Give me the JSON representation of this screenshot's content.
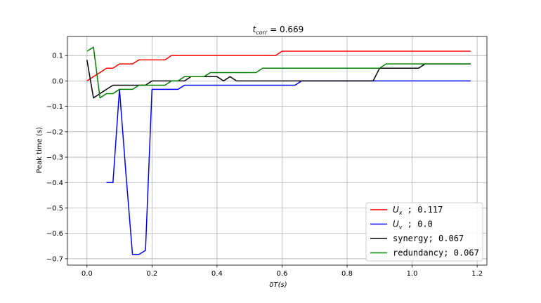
{
  "chart_data": {
    "type": "line",
    "title_main": "t",
    "title_sub": "corr",
    "title_rest": " = 0.669",
    "xlabel_main": "δT",
    "xlabel_rest": "(s)",
    "ylabel": "Peak time (s)",
    "xlim": [
      -0.06,
      1.23
    ],
    "ylim": [
      -0.725,
      0.175
    ],
    "xticks": [
      0.0,
      0.2,
      0.4,
      0.6,
      0.8,
      1.0,
      1.2
    ],
    "xtick_labels": [
      "0.0",
      "0.2",
      "0.4",
      "0.6",
      "0.8",
      "1.0",
      "1.2"
    ],
    "yticks": [
      0.1,
      0.0,
      -0.1,
      -0.2,
      -0.3,
      -0.4,
      -0.5,
      -0.6,
      -0.7
    ],
    "ytick_labels": [
      "0.1",
      "0.0",
      "−0.1",
      "−0.2",
      "−0.3",
      "−0.4",
      "−0.5",
      "−0.6",
      "−0.7"
    ],
    "grid": true,
    "legend_position": "bottom-right",
    "series": [
      {
        "legend_main": "U",
        "legend_sub": "x",
        "legend_rest": " ; 0.117",
        "color": "#ff0000",
        "points": [
          [
            0.0,
            0.0
          ],
          [
            0.02,
            0.017
          ],
          [
            0.04,
            0.033
          ],
          [
            0.06,
            0.05
          ],
          [
            0.08,
            0.05
          ],
          [
            0.1,
            0.067
          ],
          [
            0.12,
            0.067
          ],
          [
            0.14,
            0.067
          ],
          [
            0.16,
            0.083
          ],
          [
            0.18,
            0.083
          ],
          [
            0.2,
            0.083
          ],
          [
            0.22,
            0.083
          ],
          [
            0.24,
            0.083
          ],
          [
            0.26,
            0.1
          ],
          [
            0.28,
            0.1
          ],
          [
            0.3,
            0.1
          ],
          [
            0.4,
            0.1
          ],
          [
            0.5,
            0.1
          ],
          [
            0.58,
            0.1
          ],
          [
            0.6,
            0.117
          ],
          [
            0.7,
            0.117
          ],
          [
            0.8,
            0.117
          ],
          [
            0.9,
            0.117
          ],
          [
            1.0,
            0.117
          ],
          [
            1.1,
            0.117
          ],
          [
            1.18,
            0.117
          ]
        ]
      },
      {
        "legend_main": "U",
        "legend_sub": "v",
        "legend_rest": " ; 0.0",
        "color": "#0000ff",
        "points": [
          [
            0.06,
            -0.4
          ],
          [
            0.08,
            -0.4
          ],
          [
            0.1,
            -0.033
          ],
          [
            0.12,
            -0.367
          ],
          [
            0.14,
            -0.683
          ],
          [
            0.16,
            -0.683
          ],
          [
            0.18,
            -0.667
          ],
          [
            0.2,
            -0.033
          ],
          [
            0.22,
            -0.033
          ],
          [
            0.24,
            -0.033
          ],
          [
            0.26,
            -0.033
          ],
          [
            0.28,
            -0.033
          ],
          [
            0.3,
            -0.017
          ],
          [
            0.4,
            -0.017
          ],
          [
            0.5,
            -0.017
          ],
          [
            0.64,
            -0.017
          ],
          [
            0.66,
            0.0
          ],
          [
            0.8,
            0.0
          ],
          [
            1.0,
            0.0
          ],
          [
            1.18,
            0.0
          ]
        ]
      },
      {
        "legend_main": "synergy",
        "legend_sub": "",
        "legend_rest": "; 0.067",
        "color": "#000000",
        "points": [
          [
            0.0,
            0.083
          ],
          [
            0.02,
            -0.067
          ],
          [
            0.04,
            -0.05
          ],
          [
            0.06,
            -0.033
          ],
          [
            0.08,
            -0.017
          ],
          [
            0.1,
            -0.017
          ],
          [
            0.12,
            -0.017
          ],
          [
            0.14,
            -0.017
          ],
          [
            0.16,
            -0.017
          ],
          [
            0.18,
            -0.017
          ],
          [
            0.2,
            0.0
          ],
          [
            0.22,
            0.0
          ],
          [
            0.28,
            0.0
          ],
          [
            0.3,
            0.0
          ],
          [
            0.32,
            0.017
          ],
          [
            0.36,
            0.017
          ],
          [
            0.38,
            0.017
          ],
          [
            0.4,
            0.017
          ],
          [
            0.42,
            0.0
          ],
          [
            0.44,
            0.017
          ],
          [
            0.46,
            0.0
          ],
          [
            0.5,
            0.0
          ],
          [
            0.6,
            0.0
          ],
          [
            0.8,
            0.0
          ],
          [
            0.88,
            0.0
          ],
          [
            0.9,
            0.05
          ],
          [
            1.0,
            0.05
          ],
          [
            1.02,
            0.05
          ],
          [
            1.04,
            0.067
          ],
          [
            1.1,
            0.067
          ],
          [
            1.18,
            0.067
          ]
        ]
      },
      {
        "legend_main": "redundancy",
        "legend_sub": "",
        "legend_rest": "; 0.067",
        "color": "#008000",
        "points": [
          [
            0.0,
            0.117
          ],
          [
            0.02,
            0.133
          ],
          [
            0.04,
            -0.067
          ],
          [
            0.06,
            -0.05
          ],
          [
            0.08,
            -0.05
          ],
          [
            0.1,
            -0.033
          ],
          [
            0.12,
            -0.033
          ],
          [
            0.14,
            -0.033
          ],
          [
            0.16,
            -0.017
          ],
          [
            0.18,
            -0.017
          ],
          [
            0.2,
            -0.017
          ],
          [
            0.22,
            -0.017
          ],
          [
            0.24,
            -0.017
          ],
          [
            0.26,
            0.0
          ],
          [
            0.28,
            0.0
          ],
          [
            0.3,
            0.017
          ],
          [
            0.32,
            0.017
          ],
          [
            0.36,
            0.017
          ],
          [
            0.38,
            0.033
          ],
          [
            0.4,
            0.033
          ],
          [
            0.5,
            0.033
          ],
          [
            0.52,
            0.033
          ],
          [
            0.54,
            0.05
          ],
          [
            0.6,
            0.05
          ],
          [
            0.8,
            0.05
          ],
          [
            0.9,
            0.05
          ],
          [
            0.92,
            0.067
          ],
          [
            1.0,
            0.067
          ],
          [
            1.1,
            0.067
          ],
          [
            1.18,
            0.067
          ]
        ]
      }
    ]
  }
}
